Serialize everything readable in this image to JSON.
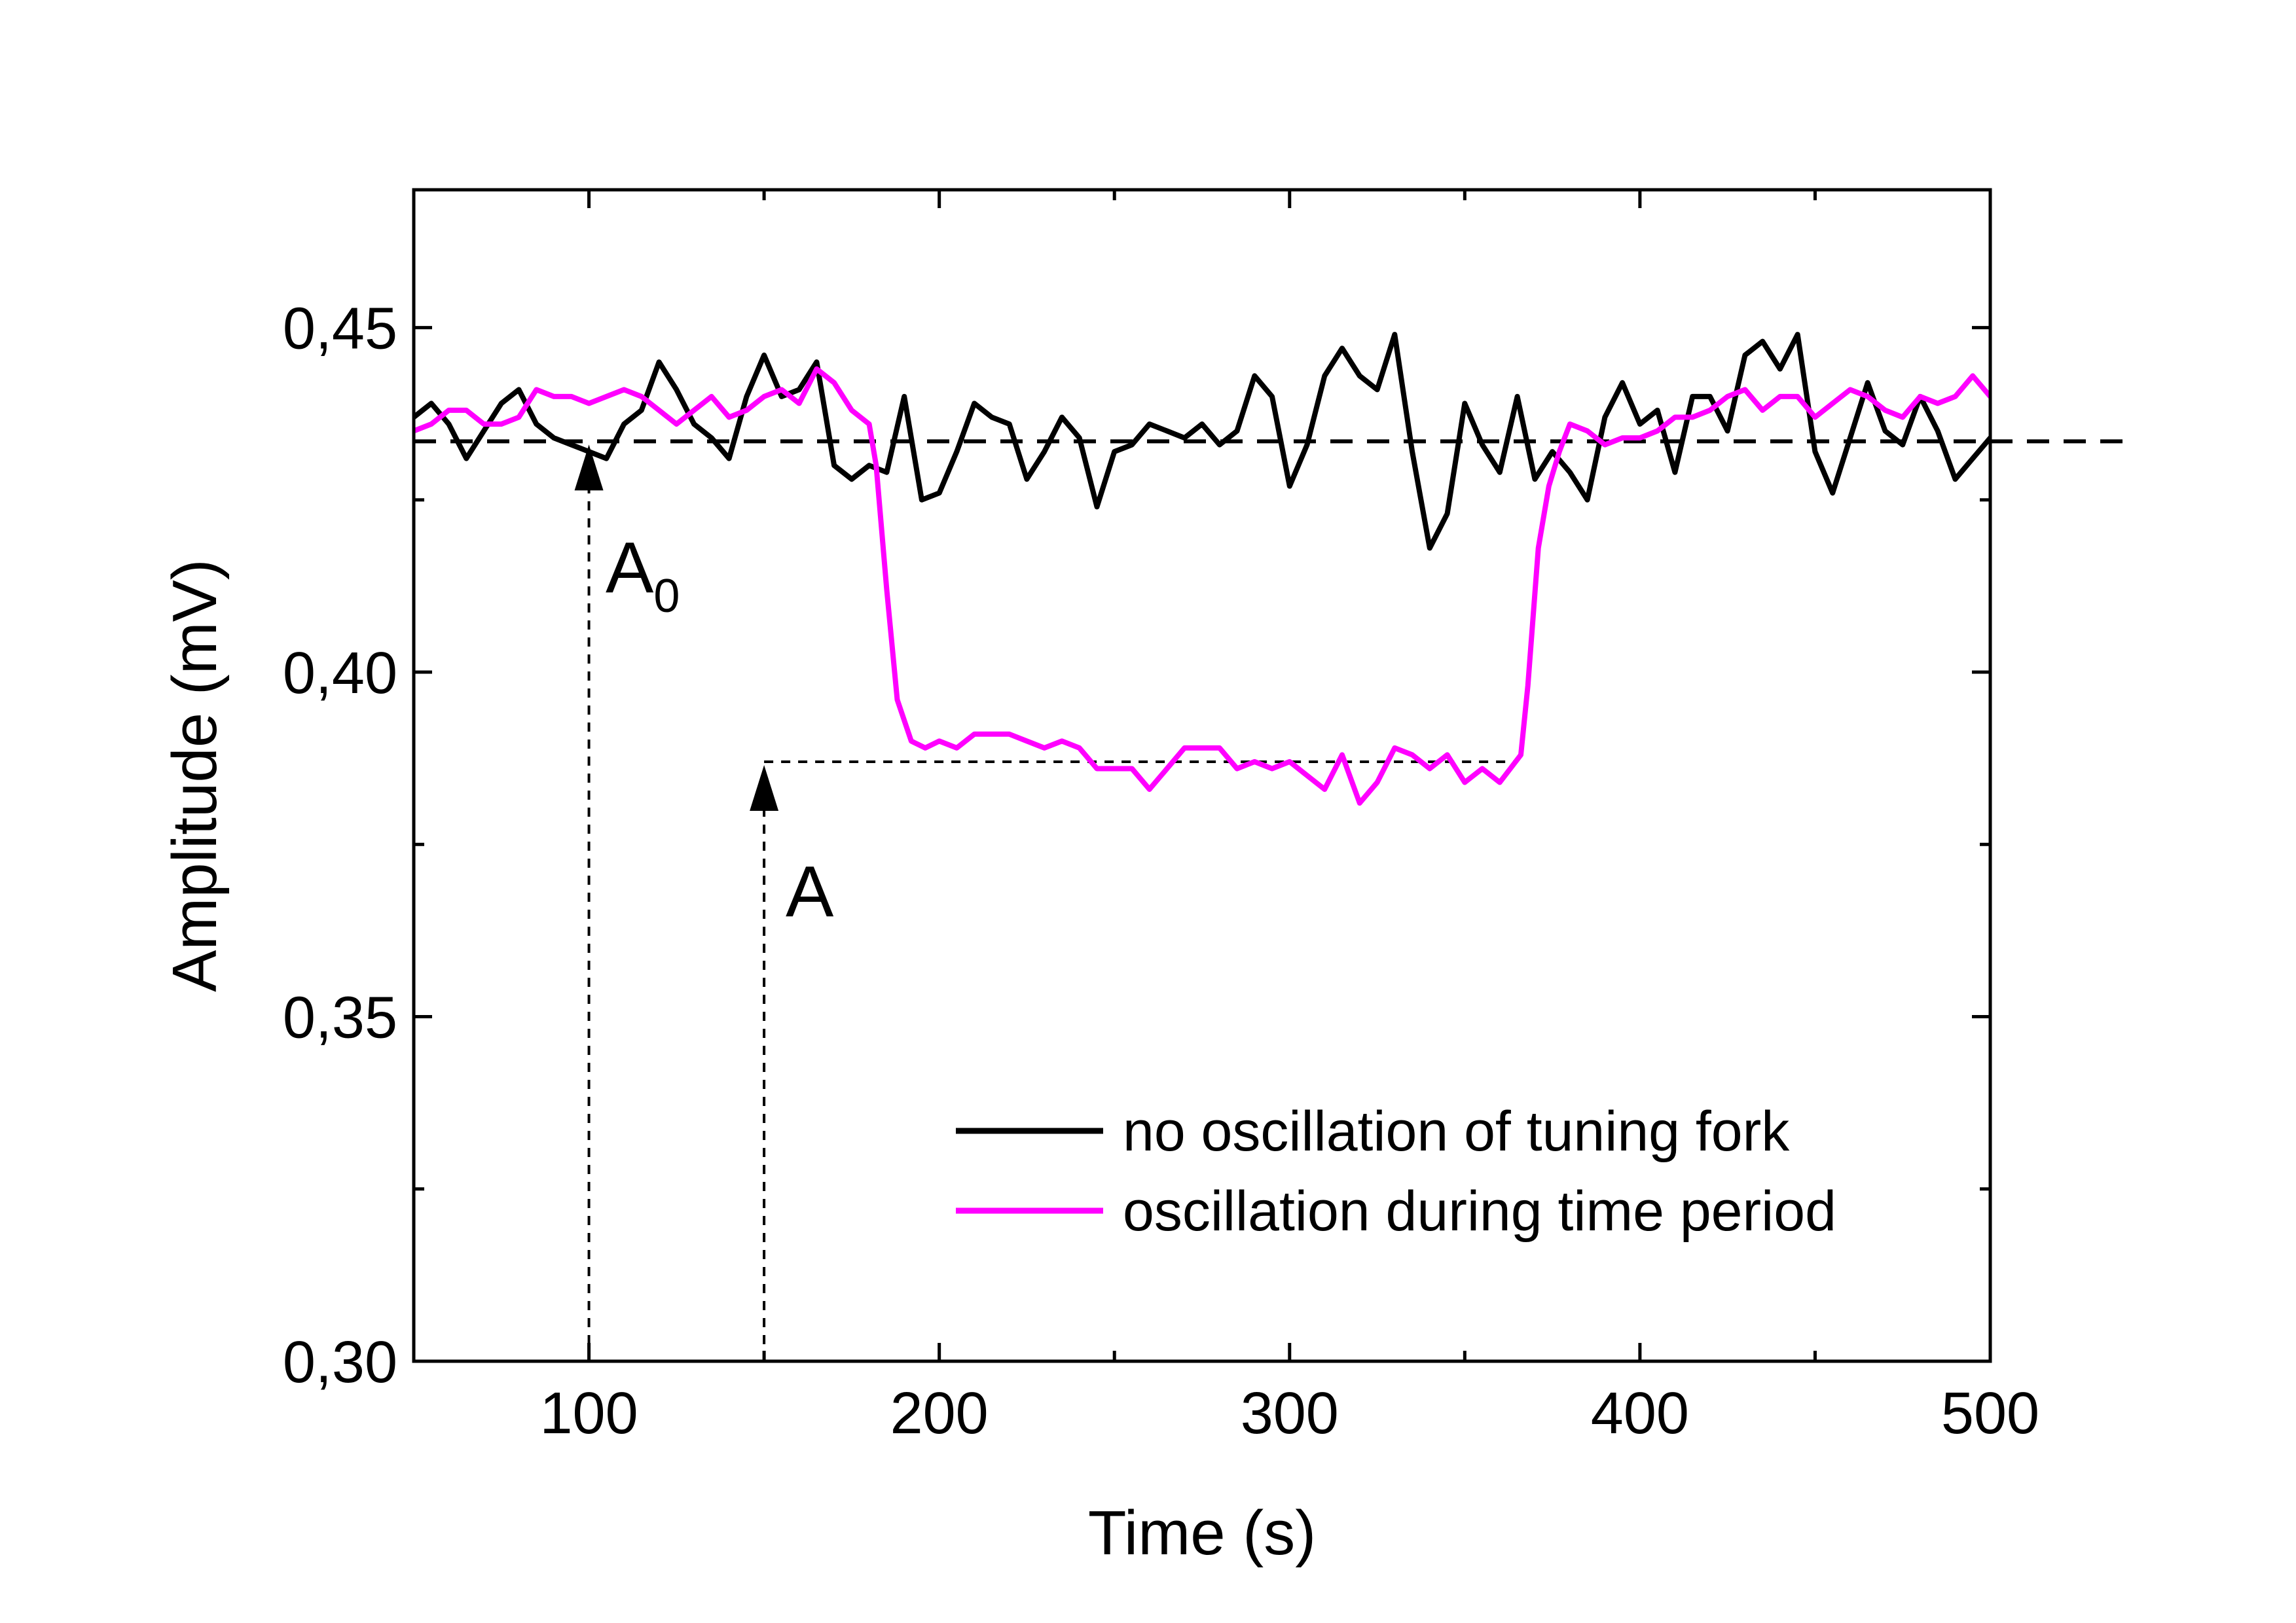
{
  "chart_data": {
    "type": "line",
    "xlabel": "Time (s)",
    "ylabel": "Amplitude (mV)",
    "xlim": [
      50,
      500
    ],
    "ylim": [
      0.3,
      0.47
    ],
    "x_ticks": [
      100,
      200,
      300,
      400,
      500
    ],
    "x_tick_labels": [
      "100",
      "200",
      "300",
      "400",
      "500"
    ],
    "x_minor_ticks": [
      150,
      250,
      350,
      450
    ],
    "y_ticks": [
      0.3,
      0.35,
      0.4,
      0.45
    ],
    "y_tick_labels": [
      "0,30",
      "0,35",
      "0,40",
      "0,45"
    ],
    "y_minor_ticks": [
      0.325,
      0.375,
      0.425
    ],
    "grid": false,
    "legend_position": "bottom-right",
    "series": [
      {
        "name": "no oscillation of tuning fork",
        "color": "#000000",
        "x": [
          50,
          55,
          60,
          65,
          70,
          75,
          80,
          85,
          90,
          95,
          100,
          105,
          110,
          115,
          120,
          125,
          130,
          135,
          140,
          145,
          150,
          155,
          160,
          165,
          170,
          175,
          180,
          185,
          190,
          195,
          200,
          205,
          210,
          215,
          220,
          225,
          230,
          235,
          240,
          245,
          250,
          255,
          260,
          265,
          270,
          275,
          280,
          285,
          290,
          295,
          300,
          305,
          310,
          315,
          320,
          325,
          330,
          335,
          340,
          345,
          350,
          355,
          360,
          365,
          370,
          375,
          380,
          385,
          390,
          395,
          400,
          405,
          410,
          415,
          420,
          425,
          430,
          435,
          440,
          445,
          450,
          455,
          460,
          465,
          470,
          475,
          480,
          485,
          490,
          495,
          500
        ],
        "y": [
          0.437,
          0.439,
          0.436,
          0.431,
          0.435,
          0.439,
          0.441,
          0.436,
          0.434,
          0.433,
          0.432,
          0.431,
          0.436,
          0.438,
          0.445,
          0.441,
          0.436,
          0.434,
          0.431,
          0.44,
          0.446,
          0.44,
          0.441,
          0.445,
          0.43,
          0.428,
          0.43,
          0.429,
          0.44,
          0.425,
          0.426,
          0.432,
          0.439,
          0.437,
          0.436,
          0.428,
          0.432,
          0.437,
          0.434,
          0.424,
          0.432,
          0.433,
          0.436,
          0.435,
          0.434,
          0.436,
          0.433,
          0.435,
          0.443,
          0.44,
          0.427,
          0.433,
          0.443,
          0.447,
          0.443,
          0.441,
          0.449,
          0.432,
          0.418,
          0.423,
          0.439,
          0.433,
          0.429,
          0.44,
          0.428,
          0.432,
          0.429,
          0.425,
          0.437,
          0.442,
          0.436,
          0.438,
          0.429,
          0.44,
          0.44,
          0.435,
          0.446,
          0.448,
          0.444,
          0.449,
          0.432,
          0.426,
          0.434,
          0.442,
          0.435,
          0.433,
          0.44,
          0.435,
          0.428,
          0.431,
          0.434
        ]
      },
      {
        "name": "oscillation during time period",
        "color": "#ff00ff",
        "x": [
          50,
          55,
          60,
          65,
          70,
          75,
          80,
          85,
          90,
          95,
          100,
          105,
          110,
          115,
          120,
          125,
          130,
          135,
          140,
          145,
          150,
          155,
          160,
          165,
          170,
          175,
          180,
          182,
          185,
          188,
          192,
          196,
          200,
          205,
          210,
          215,
          220,
          225,
          230,
          235,
          240,
          245,
          250,
          255,
          260,
          265,
          270,
          275,
          280,
          285,
          290,
          295,
          300,
          305,
          310,
          315,
          320,
          325,
          330,
          335,
          340,
          345,
          350,
          355,
          360,
          363,
          366,
          368,
          371,
          374,
          377,
          380,
          385,
          390,
          395,
          400,
          405,
          410,
          415,
          420,
          425,
          430,
          435,
          440,
          445,
          450,
          455,
          460,
          465,
          470,
          475,
          480,
          485,
          490,
          495,
          500
        ],
        "y": [
          0.435,
          0.436,
          0.438,
          0.438,
          0.436,
          0.436,
          0.437,
          0.441,
          0.44,
          0.44,
          0.439,
          0.44,
          0.441,
          0.44,
          0.438,
          0.436,
          0.438,
          0.44,
          0.437,
          0.438,
          0.44,
          0.441,
          0.439,
          0.444,
          0.442,
          0.438,
          0.436,
          0.43,
          0.412,
          0.396,
          0.39,
          0.389,
          0.39,
          0.389,
          0.391,
          0.391,
          0.391,
          0.39,
          0.389,
          0.39,
          0.389,
          0.386,
          0.386,
          0.386,
          0.383,
          0.386,
          0.389,
          0.389,
          0.389,
          0.386,
          0.387,
          0.386,
          0.387,
          0.385,
          0.383,
          0.388,
          0.381,
          0.384,
          0.389,
          0.388,
          0.386,
          0.388,
          0.384,
          0.386,
          0.384,
          0.386,
          0.388,
          0.398,
          0.418,
          0.427,
          0.432,
          0.436,
          0.435,
          0.433,
          0.434,
          0.434,
          0.435,
          0.437,
          0.437,
          0.438,
          0.44,
          0.441,
          0.438,
          0.44,
          0.44,
          0.437,
          0.439,
          0.441,
          0.44,
          0.438,
          0.437,
          0.44,
          0.439,
          0.44,
          0.443,
          0.44
        ]
      }
    ],
    "annotations": {
      "baseline_y": 0.4335,
      "a_level_y": 0.387,
      "a_level_x_end": 365,
      "a0_x": 100,
      "a0_arrow_tip_y": 0.4335,
      "a_x": 150,
      "a_arrow_tip_y": 0.387,
      "a0_main": "A",
      "a0_sub": "0",
      "a_label": "A"
    }
  }
}
